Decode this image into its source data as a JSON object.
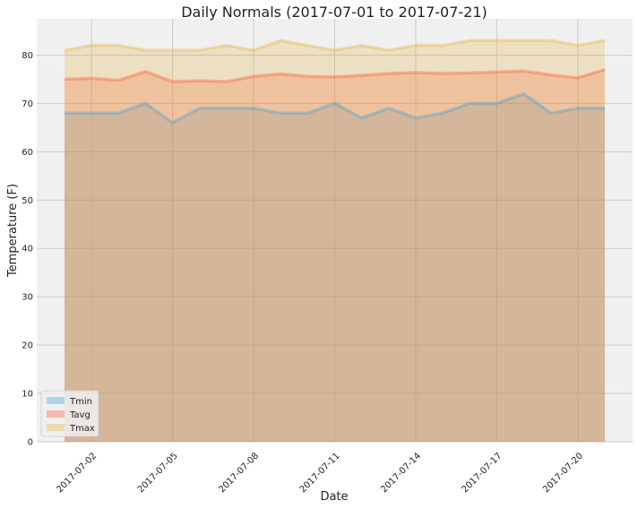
{
  "chart_data": {
    "type": "area",
    "title": "Daily Normals (2017-07-01 to 2017-07-21)",
    "xlabel": "Date",
    "ylabel": "Temperature (F)",
    "x": [
      "2017-07-01",
      "2017-07-02",
      "2017-07-03",
      "2017-07-04",
      "2017-07-05",
      "2017-07-06",
      "2017-07-07",
      "2017-07-08",
      "2017-07-09",
      "2017-07-10",
      "2017-07-11",
      "2017-07-12",
      "2017-07-13",
      "2017-07-14",
      "2017-07-15",
      "2017-07-16",
      "2017-07-17",
      "2017-07-18",
      "2017-07-19",
      "2017-07-20",
      "2017-07-21"
    ],
    "xticks": [
      "2017-07-02",
      "2017-07-05",
      "2017-07-08",
      "2017-07-11",
      "2017-07-14",
      "2017-07-17",
      "2017-07-20"
    ],
    "ylim": [
      0,
      87.5
    ],
    "yticks": [
      0,
      10,
      20,
      30,
      40,
      50,
      60,
      70,
      80
    ],
    "grid": true,
    "stacked": false,
    "legend_position": "lower-left",
    "series": [
      {
        "name": "Tmin",
        "color": "#30a2da",
        "values": [
          68,
          68,
          68,
          70,
          66,
          69,
          69,
          69,
          68,
          68,
          70,
          67,
          69,
          67,
          68,
          70,
          70,
          72,
          68,
          69,
          69
        ]
      },
      {
        "name": "Tavg",
        "color": "#fc4f30",
        "values": [
          75,
          75.2,
          74.8,
          76.6,
          74.5,
          74.7,
          74.5,
          75.6,
          76.1,
          75.6,
          75.5,
          75.8,
          76.2,
          76.4,
          76.2,
          76.3,
          76.5,
          76.7,
          75.9,
          75.3,
          77
        ]
      },
      {
        "name": "Tmax",
        "color": "#e5ae38",
        "values": [
          81,
          82,
          82,
          81,
          81,
          81,
          82,
          81,
          83,
          82,
          81,
          82,
          81,
          82,
          82,
          83,
          83,
          83,
          83,
          82,
          83
        ]
      }
    ]
  }
}
